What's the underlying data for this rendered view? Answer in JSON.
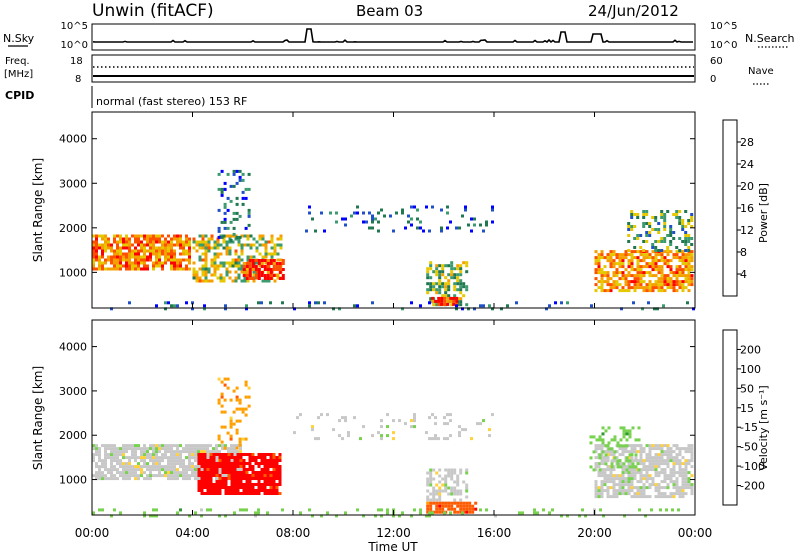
{
  "header": {
    "radar_title": "Unwin (fitACF)",
    "beam_title": "Beam 03",
    "date_title": "24/Jun/2012"
  },
  "panels": {
    "nsky": {
      "left_label": "N.Sky",
      "left_ticks": [
        "10^5",
        "10^0"
      ],
      "right_label": "N.Search",
      "right_ticks": [
        "10^5",
        "10^0"
      ],
      "series_style": "solid + dotted"
    },
    "freq": {
      "left_label_1": "Freq.",
      "left_label_2": "[MHz]",
      "left_ticks": [
        "18",
        "8"
      ],
      "right_label": "Nave",
      "right_ticks": [
        "60",
        "0"
      ]
    },
    "cpid": {
      "label": "CPID",
      "text": "normal (fast stereo) 153 RF"
    }
  },
  "colors": {
    "power": [
      "#0000ff",
      "#2050c8",
      "#207850",
      "#3c9b6e",
      "#e6c800",
      "#f5a000",
      "#ff5000",
      "#ff0000"
    ],
    "velocity": [
      "#ff0000",
      "#ff5a00",
      "#ffa000",
      "#ffd23c",
      "#c8c8c8",
      "#78d250",
      "#329632",
      "#1e64b4",
      "#0000c8"
    ]
  },
  "chart_data": [
    {
      "type": "heatmap",
      "name": "power",
      "ylabel": "Slant Range [km]",
      "yticks": [
        "1000",
        "2000",
        "3000",
        "4000"
      ],
      "ylim": [
        200,
        4600
      ],
      "colorbar_label": "Power [dB]",
      "colorbar_ticks": [
        "4",
        "8",
        "12",
        "16",
        "20",
        "24",
        "28"
      ],
      "colorbar_range": [
        0,
        30
      ],
      "regions": [
        {
          "t0": 0.0,
          "t1": 3.9,
          "r0": 1050,
          "r1": 1850,
          "value": 22,
          "density": 0.8
        },
        {
          "t0": 4.0,
          "t1": 7.5,
          "r0": 800,
          "r1": 1850,
          "value": 17,
          "density": 0.6
        },
        {
          "t0": 6.0,
          "t1": 7.6,
          "r0": 850,
          "r1": 1300,
          "value": 27,
          "density": 0.75
        },
        {
          "t0": 5.0,
          "t1": 6.2,
          "r0": 1700,
          "r1": 3300,
          "value": 8,
          "density": 0.2
        },
        {
          "t0": 8.0,
          "t1": 16.0,
          "r0": 1900,
          "r1": 2500,
          "value": 7,
          "density": 0.12
        },
        {
          "t0": 13.3,
          "t1": 14.9,
          "r0": 250,
          "r1": 1250,
          "value": 14,
          "density": 0.55
        },
        {
          "t0": 13.5,
          "t1": 14.5,
          "r0": 250,
          "r1": 450,
          "value": 26,
          "density": 0.8
        },
        {
          "t0": 20.0,
          "t1": 23.9,
          "r0": 600,
          "r1": 1500,
          "value": 21,
          "density": 0.7
        },
        {
          "t0": 21.3,
          "t1": 23.9,
          "r0": 1500,
          "r1": 2400,
          "value": 12,
          "density": 0.4
        },
        {
          "t0": 0.0,
          "t1": 24.0,
          "r0": 200,
          "r1": 350,
          "value": 8,
          "density": 0.12
        }
      ]
    },
    {
      "type": "heatmap",
      "name": "velocity",
      "ylabel": "Slant Range [km]",
      "yticks": [
        "1000",
        "2000",
        "3000",
        "4000"
      ],
      "ylim": [
        200,
        4600
      ],
      "xlabel": "Time UT",
      "xticks": [
        "00:00",
        "04:00",
        "08:00",
        "12:00",
        "16:00",
        "20:00",
        "00:00"
      ],
      "xlim": [
        0,
        24
      ],
      "colorbar_label": "Velocity [m s⁻¹]",
      "colorbar_ticks": [
        "-200",
        "-100",
        "-50",
        "-15",
        "15",
        "50",
        "100",
        "200"
      ],
      "regions": [
        {
          "t0": 0.0,
          "t1": 5.9,
          "r0": 1050,
          "r1": 1800,
          "value": "gray",
          "density": 0.8
        },
        {
          "t0": 4.2,
          "t1": 7.5,
          "r0": 700,
          "r1": 1600,
          "value": "red",
          "density": 0.85
        },
        {
          "t0": 5.0,
          "t1": 6.2,
          "r0": 1700,
          "r1": 3300,
          "value": "gold",
          "density": 0.2
        },
        {
          "t0": 8.0,
          "t1": 16.0,
          "r0": 1900,
          "r1": 2500,
          "value": "gray",
          "density": 0.12
        },
        {
          "t0": 13.3,
          "t1": 14.9,
          "r0": 500,
          "r1": 1250,
          "value": "gray",
          "density": 0.5
        },
        {
          "t0": 13.3,
          "t1": 15.3,
          "r0": 250,
          "r1": 500,
          "value": "orange",
          "density": 0.85
        },
        {
          "t0": 20.0,
          "t1": 23.9,
          "r0": 600,
          "r1": 1800,
          "value": "gray",
          "density": 0.75
        },
        {
          "t0": 19.8,
          "t1": 21.8,
          "r0": 1200,
          "r1": 2200,
          "value": "green",
          "density": 0.3
        },
        {
          "t0": 0.0,
          "t1": 24.0,
          "r0": 200,
          "r1": 350,
          "value": "green",
          "density": 0.15
        }
      ]
    }
  ]
}
